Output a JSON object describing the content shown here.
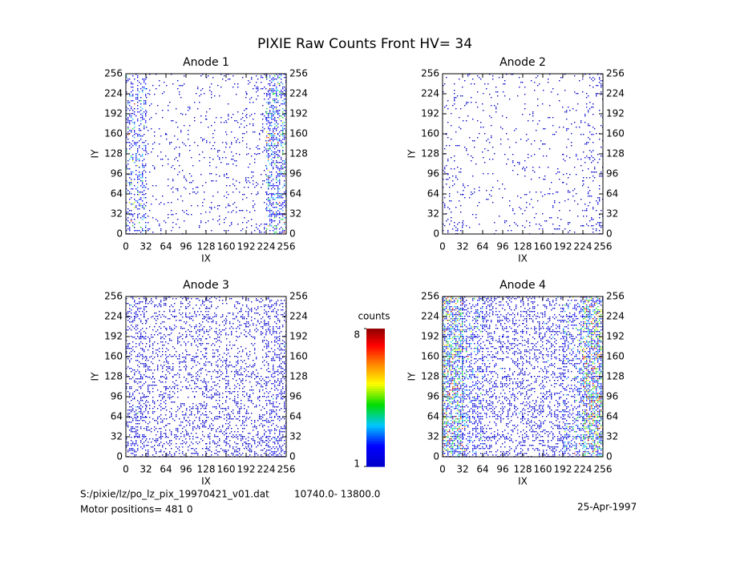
{
  "title": "PIXIE Raw Counts Front HV= 34",
  "chart_data": [
    {
      "type": "heatmap",
      "title": "Anode 1",
      "xlabel": "IX",
      "ylabel": "IY",
      "xlim": [
        0,
        256
      ],
      "ylim": [
        0,
        256
      ],
      "xticks": [
        0,
        32,
        64,
        96,
        128,
        160,
        192,
        224,
        256
      ],
      "yticks": [
        0,
        32,
        64,
        96,
        128,
        160,
        192,
        224,
        256
      ],
      "occupancy": [
        [
          0.3,
          0.06,
          0.05,
          0.05,
          0.06,
          0.06,
          0.1,
          0.4
        ],
        [
          0.3,
          0.05,
          0.05,
          0.05,
          0.06,
          0.06,
          0.1,
          0.42
        ],
        [
          0.32,
          0.06,
          0.06,
          0.05,
          0.06,
          0.1,
          0.1,
          0.45
        ],
        [
          0.3,
          0.05,
          0.05,
          0.05,
          0.06,
          0.1,
          0.1,
          0.45
        ],
        [
          0.3,
          0.05,
          0.05,
          0.05,
          0.06,
          0.08,
          0.1,
          0.45
        ],
        [
          0.32,
          0.06,
          0.06,
          0.05,
          0.06,
          0.1,
          0.1,
          0.42
        ],
        [
          0.3,
          0.06,
          0.08,
          0.05,
          0.06,
          0.1,
          0.1,
          0.42
        ],
        [
          0.3,
          0.06,
          0.06,
          0.05,
          0.06,
          0.06,
          0.1,
          0.4
        ]
      ],
      "column_counts": [
        2,
        1,
        1,
        1,
        1,
        1,
        1.2,
        2.2
      ]
    },
    {
      "type": "heatmap",
      "title": "Anode 2",
      "xlabel": "IX",
      "ylabel": "IY",
      "xlim": [
        0,
        256
      ],
      "ylim": [
        0,
        256
      ],
      "xticks": [
        0,
        32,
        64,
        96,
        128,
        160,
        192,
        224,
        256
      ],
      "yticks": [
        0,
        32,
        64,
        96,
        128,
        160,
        192,
        224,
        256
      ],
      "occupancy": [
        [
          0.08,
          0.04,
          0.04,
          0.04,
          0.04,
          0.04,
          0.05,
          0.1
        ],
        [
          0.08,
          0.04,
          0.04,
          0.04,
          0.05,
          0.04,
          0.05,
          0.1
        ],
        [
          0.08,
          0.04,
          0.05,
          0.04,
          0.05,
          0.05,
          0.05,
          0.1
        ],
        [
          0.08,
          0.04,
          0.04,
          0.04,
          0.04,
          0.05,
          0.05,
          0.12
        ],
        [
          0.08,
          0.04,
          0.04,
          0.04,
          0.04,
          0.05,
          0.05,
          0.12
        ],
        [
          0.08,
          0.04,
          0.04,
          0.04,
          0.04,
          0.06,
          0.05,
          0.12
        ],
        [
          0.1,
          0.04,
          0.04,
          0.04,
          0.05,
          0.05,
          0.05,
          0.14
        ],
        [
          0.12,
          0.05,
          0.04,
          0.04,
          0.05,
          0.05,
          0.06,
          0.16
        ]
      ],
      "column_counts": [
        1,
        1,
        1,
        1,
        1,
        1,
        1,
        1.2
      ]
    },
    {
      "type": "heatmap",
      "title": "Anode 3",
      "xlabel": "IX",
      "ylabel": "IY",
      "xlim": [
        0,
        256
      ],
      "ylim": [
        0,
        256
      ],
      "xticks": [
        0,
        32,
        64,
        96,
        128,
        160,
        192,
        224,
        256
      ],
      "yticks": [
        0,
        32,
        64,
        96,
        128,
        160,
        192,
        224,
        256
      ],
      "occupancy": [
        [
          0.3,
          0.18,
          0.18,
          0.18,
          0.2,
          0.2,
          0.2,
          0.3
        ],
        [
          0.3,
          0.18,
          0.18,
          0.2,
          0.2,
          0.2,
          0.2,
          0.3
        ],
        [
          0.3,
          0.2,
          0.2,
          0.2,
          0.2,
          0.2,
          0.2,
          0.3
        ],
        [
          0.3,
          0.2,
          0.2,
          0.22,
          0.2,
          0.22,
          0.2,
          0.32
        ],
        [
          0.3,
          0.2,
          0.2,
          0.22,
          0.22,
          0.22,
          0.22,
          0.32
        ],
        [
          0.32,
          0.22,
          0.2,
          0.22,
          0.22,
          0.22,
          0.22,
          0.32
        ],
        [
          0.35,
          0.25,
          0.22,
          0.22,
          0.22,
          0.22,
          0.25,
          0.35
        ],
        [
          0.38,
          0.28,
          0.25,
          0.25,
          0.25,
          0.25,
          0.28,
          0.38
        ]
      ],
      "column_counts": [
        1.3,
        1.1,
        1.1,
        1.1,
        1.1,
        1.1,
        1.1,
        1.3
      ]
    },
    {
      "type": "heatmap",
      "title": "Anode 4",
      "xlabel": "IX",
      "ylabel": "IY",
      "xlim": [
        0,
        256
      ],
      "ylim": [
        0,
        256
      ],
      "xticks": [
        0,
        32,
        64,
        96,
        128,
        160,
        192,
        224,
        256
      ],
      "yticks": [
        0,
        32,
        64,
        96,
        128,
        160,
        192,
        224,
        256
      ],
      "occupancy": [
        [
          0.6,
          0.35,
          0.25,
          0.25,
          0.25,
          0.25,
          0.35,
          0.65
        ],
        [
          0.6,
          0.35,
          0.25,
          0.25,
          0.25,
          0.25,
          0.35,
          0.65
        ],
        [
          0.62,
          0.35,
          0.25,
          0.25,
          0.25,
          0.25,
          0.35,
          0.66
        ],
        [
          0.62,
          0.35,
          0.25,
          0.25,
          0.25,
          0.25,
          0.35,
          0.68
        ],
        [
          0.62,
          0.35,
          0.25,
          0.25,
          0.25,
          0.25,
          0.35,
          0.68
        ],
        [
          0.62,
          0.35,
          0.25,
          0.25,
          0.25,
          0.25,
          0.35,
          0.66
        ],
        [
          0.62,
          0.38,
          0.28,
          0.25,
          0.25,
          0.28,
          0.38,
          0.66
        ],
        [
          0.65,
          0.4,
          0.3,
          0.28,
          0.28,
          0.3,
          0.4,
          0.66
        ]
      ],
      "column_counts": [
        3.2,
        1.8,
        1.3,
        1.2,
        1.2,
        1.3,
        1.8,
        3.4
      ]
    }
  ],
  "colorbar": {
    "label": "counts",
    "lim": [
      1,
      8
    ],
    "ticks": [
      1,
      8
    ]
  },
  "footer": {
    "file": "S:/pixie/lz/po_lz_pix_19970421_v01.dat",
    "range": "10740.0- 13800.0",
    "motor": "Motor positions= 481 0",
    "date": "25-Apr-1997"
  }
}
